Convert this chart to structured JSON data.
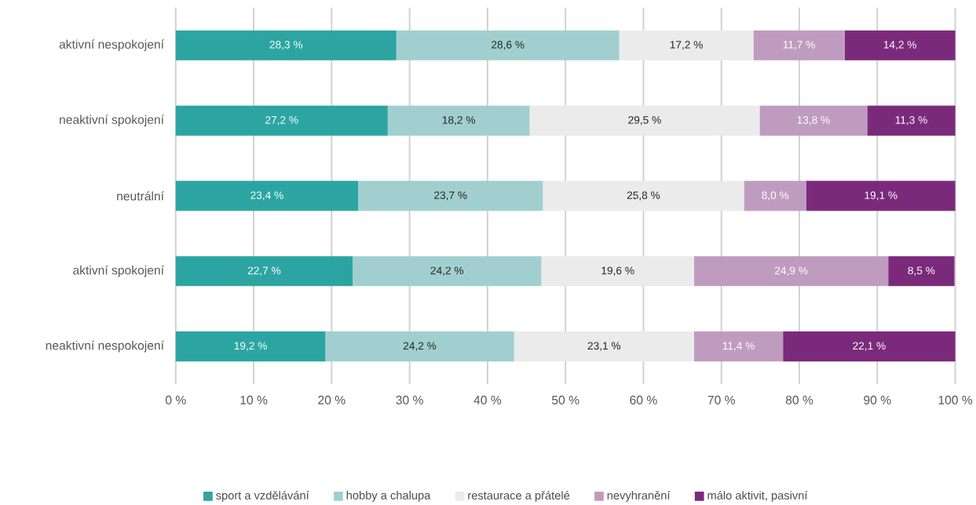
{
  "chart_data": {
    "type": "bar",
    "orientation": "horizontal",
    "stacked": true,
    "categories": [
      "aktivní nespokojení",
      "neaktivní spokojení",
      "neutrální",
      "aktivní spokojení",
      "neaktivní nespokojení"
    ],
    "series": [
      {
        "name": "sport a vzdělávání",
        "color": "#2ca5a2",
        "values": [
          28.3,
          27.2,
          23.4,
          22.7,
          19.2
        ],
        "value_labels": [
          "28,3 %",
          "27,2 %",
          "23,4 %",
          "22,7 %",
          "19,2 %"
        ]
      },
      {
        "name": "hobby a chalupa",
        "color": "#a1cfcf",
        "values": [
          28.6,
          18.2,
          23.7,
          24.2,
          24.2
        ],
        "value_labels": [
          "28,6 %",
          "18,2 %",
          "23,7 %",
          "24,2 %",
          "24,2 %"
        ]
      },
      {
        "name": "restaurace a přátelé",
        "color": "#ebebeb",
        "values": [
          17.2,
          29.5,
          25.8,
          19.6,
          23.1
        ],
        "value_labels": [
          "17,2 %",
          "29,5 %",
          "25,8 %",
          "19,6 %",
          "23,1 %"
        ]
      },
      {
        "name": "nevyhranění",
        "color": "#bf9cbf",
        "values": [
          11.7,
          13.8,
          8.0,
          24.9,
          11.4
        ],
        "value_labels": [
          "11,7 %",
          "13,8 %",
          "8,0 %",
          "24,9 %",
          "11,4 %"
        ]
      },
      {
        "name": "málo aktivit, pasivní",
        "color": "#7b2a7b",
        "values": [
          14.2,
          11.3,
          19.1,
          8.5,
          22.1
        ],
        "value_labels": [
          "14,2 %",
          "11,3 %",
          "19,1 %",
          "8,5 %",
          "22,1 %"
        ]
      }
    ],
    "xlim": [
      0,
      100
    ],
    "xticks": [
      {
        "value": 0,
        "label": "0 %"
      },
      {
        "value": 10,
        "label": "10 %"
      },
      {
        "value": 20,
        "label": "20 %"
      },
      {
        "value": 30,
        "label": "30 %"
      },
      {
        "value": 40,
        "label": "40 %"
      },
      {
        "value": 50,
        "label": "50 %"
      },
      {
        "value": 60,
        "label": "60 %"
      },
      {
        "value": 70,
        "label": "70 %"
      },
      {
        "value": 80,
        "label": "80 %"
      },
      {
        "value": 90,
        "label": "90 %"
      },
      {
        "value": 100,
        "label": "100 %"
      }
    ],
    "grid": "x",
    "legend": "bottom"
  }
}
